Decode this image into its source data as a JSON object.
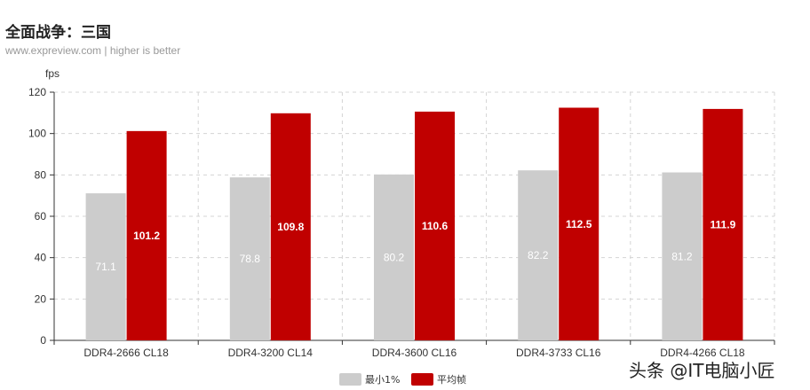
{
  "title": "全面战争：三国",
  "subtitle": "www.expreview.com | higher is better",
  "watermark": "头条 @IT电脑小匠",
  "colors": {
    "min": "#cccccc",
    "avg": "#c00000"
  },
  "chart_data": {
    "type": "bar",
    "title": "全面战争：三国",
    "subtitle": "www.expreview.com | higher is better",
    "ylabel": "fps",
    "xlabel": "",
    "ylim": [
      0,
      120
    ],
    "yticks": [
      0,
      20,
      40,
      60,
      80,
      100,
      120
    ],
    "grid": true,
    "legend_position": "bottom-center",
    "categories": [
      "DDR4-2666 CL18",
      "DDR4-3200 CL14",
      "DDR4-3600 CL16",
      "DDR4-3733 CL16",
      "DDR4-4266 CL18"
    ],
    "series": [
      {
        "name": "最小1%",
        "color": "#cccccc",
        "values": [
          71.1,
          78.8,
          80.2,
          82.2,
          81.2
        ]
      },
      {
        "name": "平均帧",
        "color": "#c00000",
        "values": [
          101.2,
          109.8,
          110.6,
          112.5,
          111.9
        ]
      }
    ]
  }
}
